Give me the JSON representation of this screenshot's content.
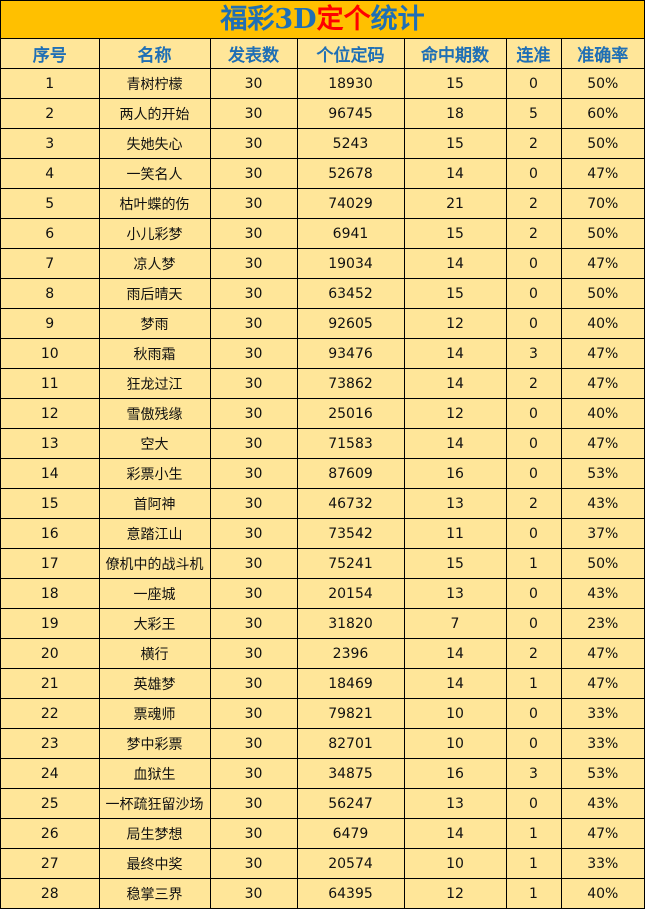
{
  "title": {
    "part1": "福彩3D",
    "part2": "定个",
    "part3": "统计"
  },
  "colors": {
    "title_bg": "#FFC000",
    "cell_bg": "#FFE699",
    "header_text": "#1F6FB5",
    "highlight": "#FF0000"
  },
  "columns": [
    "序号",
    "名称",
    "发表数",
    "个位定码",
    "命中期数",
    "连准",
    "准确率"
  ],
  "rows": [
    [
      "1",
      "青树柠檬",
      "30",
      "18930",
      "15",
      "0",
      "50%"
    ],
    [
      "2",
      "两人的开始",
      "30",
      "96745",
      "18",
      "5",
      "60%"
    ],
    [
      "3",
      "失她失心",
      "30",
      "5243",
      "15",
      "2",
      "50%"
    ],
    [
      "4",
      "一笑名人",
      "30",
      "52678",
      "14",
      "0",
      "47%"
    ],
    [
      "5",
      "枯叶蝶的伤",
      "30",
      "74029",
      "21",
      "2",
      "70%"
    ],
    [
      "6",
      "小儿彩梦",
      "30",
      "6941",
      "15",
      "2",
      "50%"
    ],
    [
      "7",
      "凉人梦",
      "30",
      "19034",
      "14",
      "0",
      "47%"
    ],
    [
      "8",
      "雨后晴天",
      "30",
      "63452",
      "15",
      "0",
      "50%"
    ],
    [
      "9",
      "梦雨",
      "30",
      "92605",
      "12",
      "0",
      "40%"
    ],
    [
      "10",
      "秋雨霜",
      "30",
      "93476",
      "14",
      "3",
      "47%"
    ],
    [
      "11",
      "狂龙过江",
      "30",
      "73862",
      "14",
      "2",
      "47%"
    ],
    [
      "12",
      "雪傲残缘",
      "30",
      "25016",
      "12",
      "0",
      "40%"
    ],
    [
      "13",
      "空大",
      "30",
      "71583",
      "14",
      "0",
      "47%"
    ],
    [
      "14",
      "彩票小生",
      "30",
      "87609",
      "16",
      "0",
      "53%"
    ],
    [
      "15",
      "首阿神",
      "30",
      "46732",
      "13",
      "2",
      "43%"
    ],
    [
      "16",
      "意踏江山",
      "30",
      "73542",
      "11",
      "0",
      "37%"
    ],
    [
      "17",
      "僚机中的战斗机",
      "30",
      "75241",
      "15",
      "1",
      "50%"
    ],
    [
      "18",
      "一座城",
      "30",
      "20154",
      "13",
      "0",
      "43%"
    ],
    [
      "19",
      "大彩王",
      "30",
      "31820",
      "7",
      "0",
      "23%"
    ],
    [
      "20",
      "横行",
      "30",
      "2396",
      "14",
      "2",
      "47%"
    ],
    [
      "21",
      "英雄梦",
      "30",
      "18469",
      "14",
      "1",
      "47%"
    ],
    [
      "22",
      "票魂师",
      "30",
      "79821",
      "10",
      "0",
      "33%"
    ],
    [
      "23",
      "梦中彩票",
      "30",
      "82701",
      "10",
      "0",
      "33%"
    ],
    [
      "24",
      "血狱生",
      "30",
      "34875",
      "16",
      "3",
      "53%"
    ],
    [
      "25",
      "一杯疏狂留沙场",
      "30",
      "56247",
      "13",
      "0",
      "43%"
    ],
    [
      "26",
      "局生梦想",
      "30",
      "6479",
      "14",
      "1",
      "47%"
    ],
    [
      "27",
      "最终中奖",
      "30",
      "20574",
      "10",
      "1",
      "33%"
    ],
    [
      "28",
      "稳掌三界",
      "30",
      "64395",
      "12",
      "1",
      "40%"
    ]
  ]
}
